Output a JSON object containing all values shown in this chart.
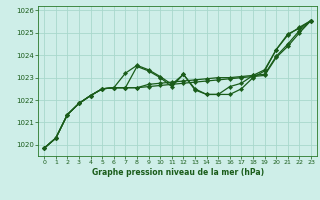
{
  "xlabel": "Graphe pression niveau de la mer (hPa)",
  "background_color": "#ceeee8",
  "grid_color": "#a8d8cc",
  "line_color": "#1a5c1a",
  "ylim": [
    1019.5,
    1026.2
  ],
  "xlim": [
    -0.5,
    23.5
  ],
  "yticks": [
    1020,
    1021,
    1022,
    1023,
    1024,
    1025,
    1026
  ],
  "xticks": [
    0,
    1,
    2,
    3,
    4,
    5,
    6,
    7,
    8,
    9,
    10,
    11,
    12,
    13,
    14,
    15,
    16,
    17,
    18,
    19,
    20,
    21,
    22,
    23
  ],
  "series": [
    [
      1019.85,
      1020.3,
      1021.35,
      1021.85,
      1022.2,
      1022.5,
      1022.55,
      1022.55,
      1023.5,
      1023.3,
      1023.0,
      1022.6,
      1023.15,
      1022.45,
      1022.25,
      1022.25,
      1022.25,
      1022.5,
      1023.0,
      1023.3,
      1024.25,
      1024.95,
      1025.2,
      1025.55
    ],
    [
      1019.85,
      1020.3,
      1021.35,
      1021.85,
      1022.2,
      1022.5,
      1022.55,
      1022.55,
      1022.55,
      1022.7,
      1022.75,
      1022.8,
      1022.85,
      1022.9,
      1022.95,
      1023.0,
      1023.0,
      1023.05,
      1023.1,
      1023.15,
      1023.95,
      1024.5,
      1025.1,
      1025.55
    ],
    [
      1019.85,
      1020.3,
      1021.35,
      1021.85,
      1022.2,
      1022.5,
      1022.55,
      1022.55,
      1022.55,
      1022.6,
      1022.65,
      1022.7,
      1022.75,
      1022.8,
      1022.85,
      1022.9,
      1022.95,
      1023.0,
      1023.05,
      1023.1,
      1023.9,
      1024.4,
      1025.0,
      1025.55
    ],
    [
      1019.85,
      1020.3,
      1021.35,
      1021.85,
      1022.2,
      1022.5,
      1022.55,
      1023.2,
      1023.55,
      1023.35,
      1023.05,
      1022.7,
      1023.15,
      1022.5,
      1022.25,
      1022.25,
      1022.6,
      1022.75,
      1023.1,
      1023.35,
      1024.25,
      1024.9,
      1025.25,
      1025.55
    ]
  ]
}
